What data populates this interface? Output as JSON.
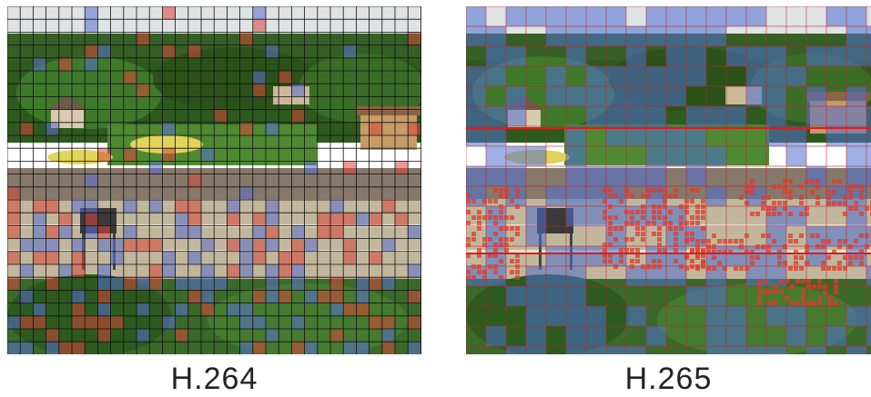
{
  "panels": {
    "left": {
      "label": "H.264"
    },
    "right": {
      "label": "H.265"
    }
  },
  "colors": {
    "sky": "#dfe3e4",
    "foliage_dark": "#244a18",
    "foliage_mid": "#3d6f28",
    "lawn": "#4f8a32",
    "sand": "#e2d35a",
    "roof": "#b5825a",
    "wall": "#86786a",
    "road": "#c2b79c",
    "lane_line": "#e8e2cc",
    "grid_black": "#111111",
    "grid_red": "#c62828",
    "block_blue": "#4f6fd1",
    "motion_red": "#e23a2a"
  }
}
